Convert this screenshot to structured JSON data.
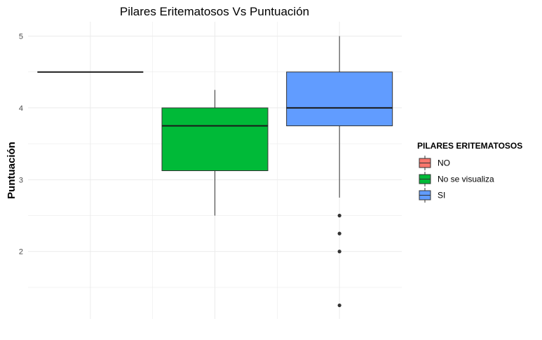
{
  "chart_data": {
    "type": "boxplot",
    "title": "Pilares Eritematosos Vs Puntuación",
    "xlabel": "",
    "ylabel": "Puntuación",
    "ylim": [
      1.06,
      5.2
    ],
    "yticks": [
      "2",
      "3",
      "4",
      "5"
    ],
    "grid": true,
    "legend": {
      "title": "PILARES ERITEMATOSOS",
      "position": "right"
    },
    "series": [
      {
        "name": "NO",
        "color": "#F8766D",
        "min": 4.5,
        "q1": 4.5,
        "median": 4.5,
        "q3": 4.5,
        "max": 4.5,
        "outliers": []
      },
      {
        "name": "No se visualiza",
        "color": "#00BA38",
        "min": 2.5,
        "q1": 3.125,
        "median": 3.75,
        "q3": 4.0,
        "max": 4.25,
        "outliers": []
      },
      {
        "name": "SI",
        "color": "#619CFF",
        "min": 2.75,
        "q1": 3.75,
        "median": 4.0,
        "q3": 4.5,
        "max": 5.0,
        "outliers": [
          2.5,
          2.25,
          2.0,
          1.25
        ]
      }
    ]
  }
}
